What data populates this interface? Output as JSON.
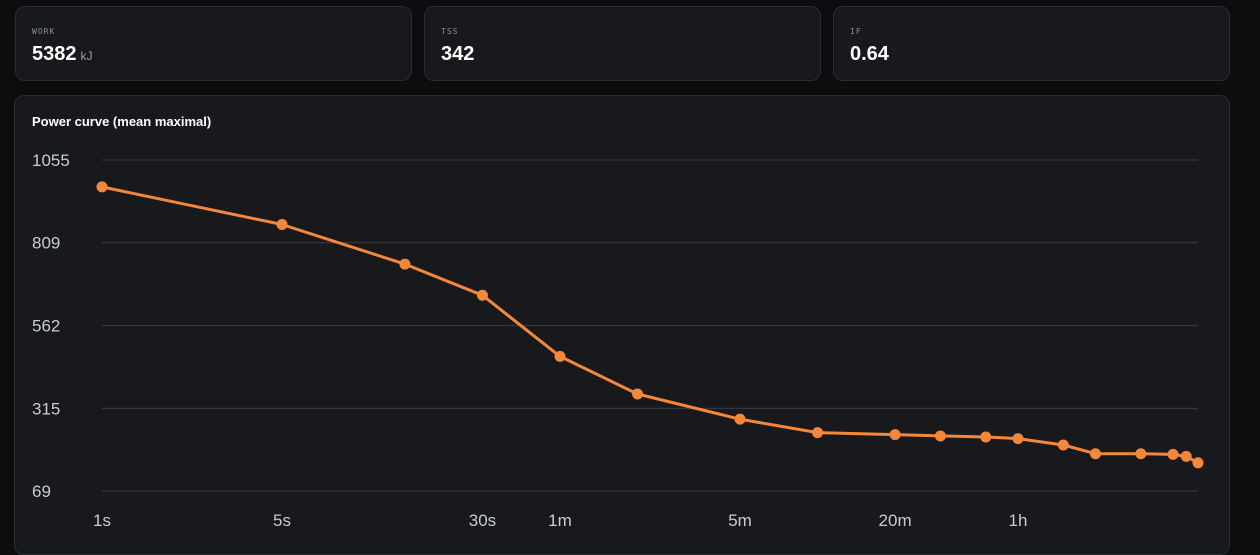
{
  "stats": [
    {
      "label": "WORK",
      "value": "5382",
      "unit": "kJ"
    },
    {
      "label": "TSS",
      "value": "342",
      "unit": ""
    },
    {
      "label": "IF",
      "value": "0.64",
      "unit": ""
    }
  ],
  "colors": {
    "line": "#f5873a",
    "grid": "#33363b",
    "tick": "#c9ccd0"
  },
  "chart_data": {
    "type": "line",
    "title": "Power curve (mean maximal)",
    "xscale": "log",
    "grid": true,
    "yticks": [
      1055,
      809,
      562,
      315,
      69
    ],
    "ylim": [
      69,
      1055
    ],
    "xticks": [
      {
        "label": "1s",
        "seconds": 1
      },
      {
        "label": "5s",
        "seconds": 5
      },
      {
        "label": "30s",
        "seconds": 30
      },
      {
        "label": "1m",
        "seconds": 60
      },
      {
        "label": "5m",
        "seconds": 300
      },
      {
        "label": "20m",
        "seconds": 1200
      },
      {
        "label": "1h",
        "seconds": 3600
      }
    ],
    "series": [
      {
        "x": [
          1,
          5,
          15,
          30,
          60,
          120,
          300,
          600,
          1200,
          1800,
          2700,
          3600,
          5400,
          7200,
          10800,
          14400,
          16200,
          18000
        ],
        "y": [
          975,
          863,
          745,
          652,
          470,
          358,
          283,
          243,
          237,
          233,
          230,
          225,
          206,
          180,
          180,
          178,
          172,
          153
        ]
      }
    ]
  }
}
